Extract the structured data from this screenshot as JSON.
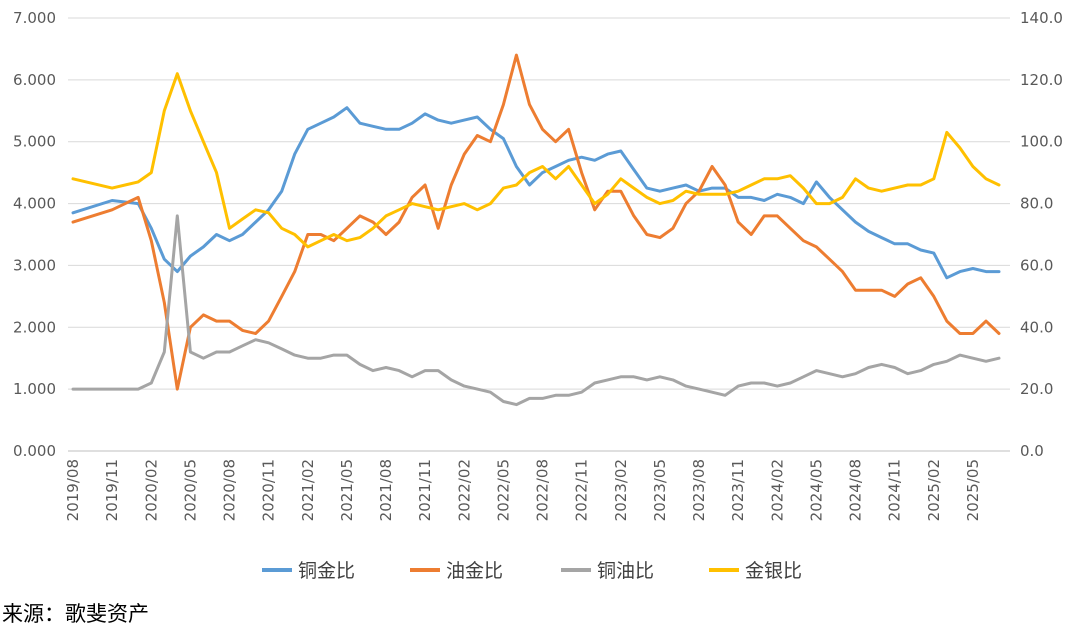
{
  "chart_data": {
    "type": "line",
    "title": "",
    "left_axis": {
      "min": 0,
      "max": 7,
      "ticks": [
        "0.000",
        "1.000",
        "2.000",
        "3.000",
        "4.000",
        "5.000",
        "6.000",
        "7.000"
      ]
    },
    "right_axis": {
      "min": 0,
      "max": 140,
      "ticks": [
        "0.0",
        "20.0",
        "40.0",
        "60.0",
        "80.0",
        "100.0",
        "120.0",
        "140.0"
      ]
    },
    "x_labels": [
      "2019/08",
      "2019/11",
      "2020/02",
      "2020/05",
      "2020/08",
      "2020/11",
      "2021/02",
      "2021/05",
      "2021/08",
      "2021/11",
      "2022/02",
      "2022/05",
      "2022/08",
      "2022/11",
      "2023/02",
      "2023/05",
      "2023/08",
      "2023/11",
      "2024/02",
      "2024/05",
      "2024/08",
      "2024/11",
      "2025/02",
      "2025/05"
    ],
    "grid": true,
    "legend_position": "bottom",
    "series": [
      {
        "name": "铜金比",
        "axis": "left",
        "color": "#5B9BD5",
        "x": [
          "2019/08",
          "2019/11",
          "2020/01",
          "2020/02",
          "2020/03",
          "2020/04",
          "2020/05",
          "2020/06",
          "2020/07",
          "2020/08",
          "2020/09",
          "2020/10",
          "2020/11",
          "2020/12",
          "2021/01",
          "2021/02",
          "2021/03",
          "2021/04",
          "2021/05",
          "2021/06",
          "2021/07",
          "2021/08",
          "2021/09",
          "2021/10",
          "2021/11",
          "2021/12",
          "2022/01",
          "2022/02",
          "2022/03",
          "2022/04",
          "2022/05",
          "2022/06",
          "2022/07",
          "2022/08",
          "2022/09",
          "2022/10",
          "2022/11",
          "2022/12",
          "2023/01",
          "2023/02",
          "2023/03",
          "2023/04",
          "2023/05",
          "2023/06",
          "2023/07",
          "2023/08",
          "2023/09",
          "2023/10",
          "2023/11",
          "2023/12",
          "2024/01",
          "2024/02",
          "2024/03",
          "2024/04",
          "2024/05",
          "2024/06",
          "2024/07",
          "2024/08",
          "2024/09",
          "2024/10",
          "2024/11",
          "2024/12",
          "2025/01",
          "2025/02",
          "2025/03",
          "2025/04",
          "2025/05",
          "2025/06",
          "2025/07"
        ],
        "values": [
          3.85,
          4.05,
          4.0,
          3.6,
          3.1,
          2.9,
          3.15,
          3.3,
          3.5,
          3.4,
          3.5,
          3.7,
          3.9,
          4.2,
          4.8,
          5.2,
          5.3,
          5.4,
          5.55,
          5.3,
          5.25,
          5.2,
          5.2,
          5.3,
          5.45,
          5.35,
          5.3,
          5.35,
          5.4,
          5.2,
          5.05,
          4.6,
          4.3,
          4.5,
          4.6,
          4.7,
          4.75,
          4.7,
          4.8,
          4.85,
          4.55,
          4.25,
          4.2,
          4.25,
          4.3,
          4.2,
          4.25,
          4.25,
          4.1,
          4.1,
          4.05,
          4.15,
          4.1,
          4.0,
          4.35,
          4.1,
          3.9,
          3.7,
          3.55,
          3.45,
          3.35,
          3.35,
          3.25,
          3.2,
          2.8,
          2.9,
          2.95,
          2.9,
          2.9
        ]
      },
      {
        "name": "油金比",
        "axis": "left",
        "color": "#ED7D31",
        "x": [
          "2019/08",
          "2019/11",
          "2020/01",
          "2020/02",
          "2020/03",
          "2020/04",
          "2020/05",
          "2020/06",
          "2020/07",
          "2020/08",
          "2020/09",
          "2020/10",
          "2020/11",
          "2020/12",
          "2021/01",
          "2021/02",
          "2021/03",
          "2021/04",
          "2021/05",
          "2021/06",
          "2021/07",
          "2021/08",
          "2021/09",
          "2021/10",
          "2021/11",
          "2021/12",
          "2022/01",
          "2022/02",
          "2022/03",
          "2022/04",
          "2022/05",
          "2022/06",
          "2022/07",
          "2022/08",
          "2022/09",
          "2022/10",
          "2022/11",
          "2022/12",
          "2023/01",
          "2023/02",
          "2023/03",
          "2023/04",
          "2023/05",
          "2023/06",
          "2023/07",
          "2023/08",
          "2023/09",
          "2023/10",
          "2023/11",
          "2023/12",
          "2024/01",
          "2024/02",
          "2024/03",
          "2024/04",
          "2024/05",
          "2024/06",
          "2024/07",
          "2024/08",
          "2024/09",
          "2024/10",
          "2024/11",
          "2024/12",
          "2025/01",
          "2025/02",
          "2025/03",
          "2025/04",
          "2025/05",
          "2025/06",
          "2025/07"
        ],
        "values": [
          3.7,
          3.9,
          4.1,
          3.4,
          2.4,
          1.0,
          2.0,
          2.2,
          2.1,
          2.1,
          1.95,
          1.9,
          2.1,
          2.5,
          2.9,
          3.5,
          3.5,
          3.4,
          3.6,
          3.8,
          3.7,
          3.5,
          3.7,
          4.1,
          4.3,
          3.6,
          4.3,
          4.8,
          5.1,
          5.0,
          5.6,
          6.4,
          5.6,
          5.2,
          5.0,
          5.2,
          4.5,
          3.9,
          4.2,
          4.2,
          3.8,
          3.5,
          3.45,
          3.6,
          4.0,
          4.2,
          4.6,
          4.3,
          3.7,
          3.5,
          3.8,
          3.8,
          3.6,
          3.4,
          3.3,
          3.1,
          2.9,
          2.6,
          2.6,
          2.6,
          2.5,
          2.7,
          2.8,
          2.5,
          2.1,
          1.9,
          1.9,
          2.1,
          1.9
        ]
      },
      {
        "name": "铜油比",
        "axis": "left",
        "color": "#A5A5A5",
        "x": [
          "2019/08",
          "2019/11",
          "2020/01",
          "2020/02",
          "2020/03",
          "2020/04",
          "2020/05",
          "2020/06",
          "2020/07",
          "2020/08",
          "2020/09",
          "2020/10",
          "2020/11",
          "2020/12",
          "2021/01",
          "2021/02",
          "2021/03",
          "2021/04",
          "2021/05",
          "2021/06",
          "2021/07",
          "2021/08",
          "2021/09",
          "2021/10",
          "2021/11",
          "2021/12",
          "2022/01",
          "2022/02",
          "2022/03",
          "2022/04",
          "2022/05",
          "2022/06",
          "2022/07",
          "2022/08",
          "2022/09",
          "2022/10",
          "2022/11",
          "2022/12",
          "2023/01",
          "2023/02",
          "2023/03",
          "2023/04",
          "2023/05",
          "2023/06",
          "2023/07",
          "2023/08",
          "2023/09",
          "2023/10",
          "2023/11",
          "2023/12",
          "2024/01",
          "2024/02",
          "2024/03",
          "2024/04",
          "2024/05",
          "2024/06",
          "2024/07",
          "2024/08",
          "2024/09",
          "2024/10",
          "2024/11",
          "2024/12",
          "2025/01",
          "2025/02",
          "2025/03",
          "2025/04",
          "2025/05",
          "2025/06",
          "2025/07"
        ],
        "values": [
          1.0,
          1.0,
          1.0,
          1.1,
          1.6,
          3.8,
          1.6,
          1.5,
          1.6,
          1.6,
          1.7,
          1.8,
          1.75,
          1.65,
          1.55,
          1.5,
          1.5,
          1.55,
          1.55,
          1.4,
          1.3,
          1.35,
          1.3,
          1.2,
          1.3,
          1.3,
          1.15,
          1.05,
          1.0,
          0.95,
          0.8,
          0.75,
          0.85,
          0.85,
          0.9,
          0.9,
          0.95,
          1.1,
          1.15,
          1.2,
          1.2,
          1.15,
          1.2,
          1.15,
          1.05,
          1.0,
          0.95,
          0.9,
          1.05,
          1.1,
          1.1,
          1.05,
          1.1,
          1.2,
          1.3,
          1.25,
          1.2,
          1.25,
          1.35,
          1.4,
          1.35,
          1.25,
          1.3,
          1.4,
          1.45,
          1.55,
          1.5,
          1.45,
          1.5
        ]
      },
      {
        "name": "金银比",
        "axis": "right",
        "color": "#FFC000",
        "x": [
          "2019/08",
          "2019/11",
          "2020/01",
          "2020/02",
          "2020/03",
          "2020/04",
          "2020/05",
          "2020/06",
          "2020/07",
          "2020/08",
          "2020/09",
          "2020/10",
          "2020/11",
          "2020/12",
          "2021/01",
          "2021/02",
          "2021/03",
          "2021/04",
          "2021/05",
          "2021/06",
          "2021/07",
          "2021/08",
          "2021/09",
          "2021/10",
          "2021/11",
          "2021/12",
          "2022/01",
          "2022/02",
          "2022/03",
          "2022/04",
          "2022/05",
          "2022/06",
          "2022/07",
          "2022/08",
          "2022/09",
          "2022/10",
          "2022/11",
          "2022/12",
          "2023/01",
          "2023/02",
          "2023/03",
          "2023/04",
          "2023/05",
          "2023/06",
          "2023/07",
          "2023/08",
          "2023/09",
          "2023/10",
          "2023/11",
          "2023/12",
          "2024/01",
          "2024/02",
          "2024/03",
          "2024/04",
          "2024/05",
          "2024/06",
          "2024/07",
          "2024/08",
          "2024/09",
          "2024/10",
          "2024/11",
          "2024/12",
          "2025/01",
          "2025/02",
          "2025/03",
          "2025/04",
          "2025/05",
          "2025/06",
          "2025/07"
        ],
        "values": [
          88,
          85,
          87,
          90,
          110,
          122,
          110,
          100,
          90,
          72,
          75,
          78,
          77,
          72,
          70,
          66,
          68,
          70,
          68,
          69,
          72,
          76,
          78,
          80,
          79,
          78,
          79,
          80,
          78,
          80,
          85,
          86,
          90,
          92,
          88,
          92,
          86,
          80,
          83,
          88,
          85,
          82,
          80,
          81,
          84,
          83,
          83,
          83,
          84,
          86,
          88,
          88,
          89,
          85,
          80,
          80,
          82,
          88,
          85,
          84,
          85,
          86,
          86,
          88,
          103,
          98,
          92,
          88,
          86
        ]
      }
    ]
  },
  "legend": {
    "items": [
      {
        "label": "铜金比",
        "color": "#5B9BD5"
      },
      {
        "label": "油金比",
        "color": "#ED7D31"
      },
      {
        "label": "铜油比",
        "color": "#A5A5A5"
      },
      {
        "label": "金银比",
        "color": "#FFC000"
      }
    ]
  },
  "source": "来源：歌斐资产"
}
